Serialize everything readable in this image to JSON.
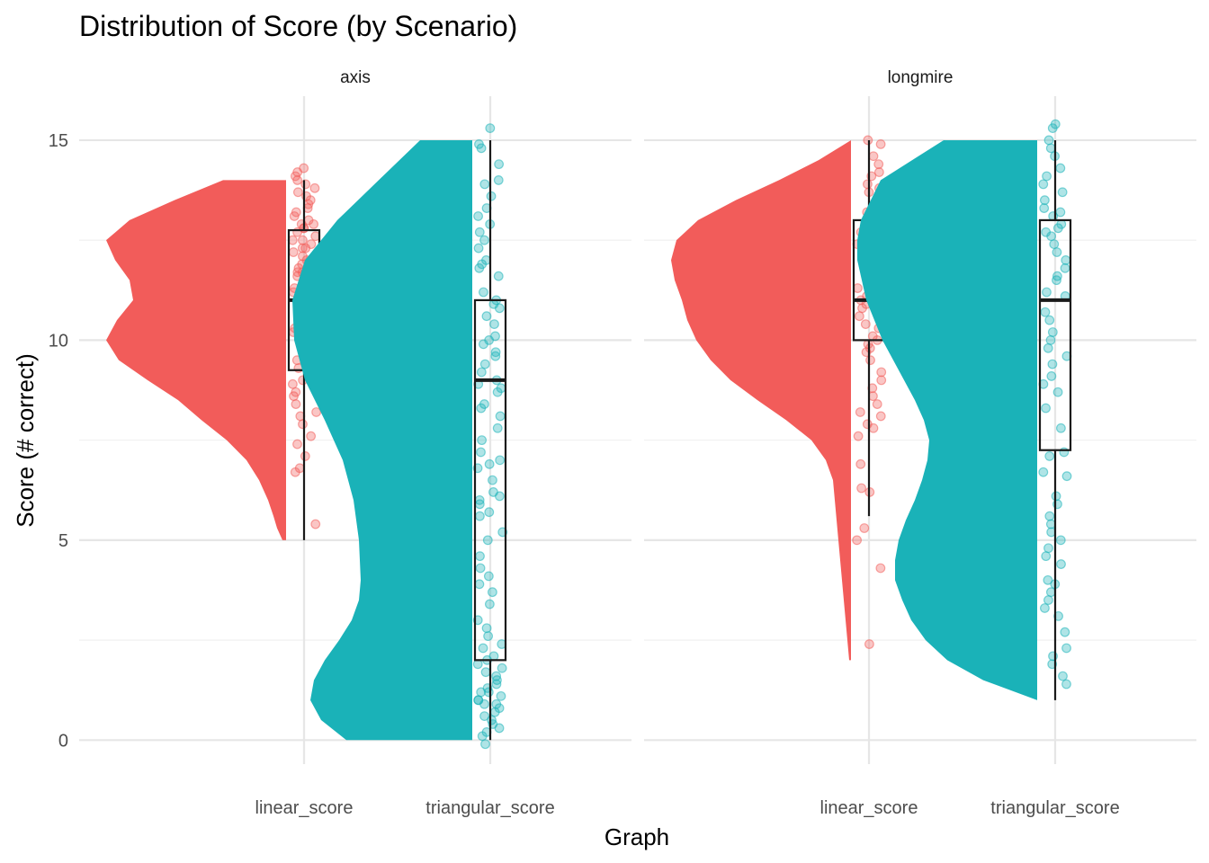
{
  "chart_data": {
    "type": "raincloud",
    "title": "Distribution of Score (by Scenario)",
    "xlabel": "Graph",
    "ylabel": "Score (# correct)",
    "ylim": [
      -0.6,
      16.1
    ],
    "y_ticks": [
      0,
      5,
      10,
      15
    ],
    "y_minor_ticks": [
      2.5,
      7.5,
      12.5
    ],
    "grid": true,
    "legend": "none",
    "categories": [
      "linear_score",
      "triangular_score"
    ],
    "colors": {
      "linear_score": "#F25C5A",
      "triangular_score": "#1AB2B8"
    },
    "facets": [
      {
        "label": "axis",
        "groups": [
          {
            "category": "linear_score",
            "box": {
              "min": 5,
              "q1": 9.25,
              "median": 11,
              "q3": 12.75,
              "max": 14
            },
            "density": [
              [
                5,
                0.02
              ],
              [
                5.3,
                0.05
              ],
              [
                5.6,
                0.07
              ],
              [
                6,
                0.1
              ],
              [
                6.5,
                0.15
              ],
              [
                7,
                0.22
              ],
              [
                7.5,
                0.33
              ],
              [
                8,
                0.47
              ],
              [
                8.5,
                0.6
              ],
              [
                9,
                0.77
              ],
              [
                9.5,
                0.93
              ],
              [
                10,
                1.0
              ],
              [
                10.5,
                0.94
              ],
              [
                11,
                0.85
              ],
              [
                11.5,
                0.87
              ],
              [
                12,
                0.95
              ],
              [
                12.5,
                1.0
              ],
              [
                13,
                0.87
              ],
              [
                13.5,
                0.62
              ],
              [
                14,
                0.35
              ]
            ],
            "points": [
              12.8,
              12.3,
              13.1,
              11.7,
              12.5,
              10.4,
              11.2,
              12.9,
              13.6,
              10.9,
              11.8,
              12.4,
              9.1,
              10.2,
              11.5,
              12.7,
              13.4,
              14.1,
              13.9,
              14.3,
              8.4,
              8.9,
              9.6,
              10.7,
              11.3,
              12.1,
              12.6,
              13.2,
              11.9,
              10.5,
              9.8,
              9.3,
              8.7,
              8.2,
              7.9,
              7.4,
              7.1,
              6.8,
              6.7,
              7.6,
              8.1,
              11.1,
              12.2,
              13.8,
              14.2,
              10.1,
              10.8,
              11.6,
              12.0,
              12.9,
              13.5,
              11.4,
              10.3,
              9.5,
              9.0,
              8.6,
              12.5,
              11.0,
              13.0,
              13.3,
              5.4,
              10.6,
              11.7,
              12.8,
              9.7,
              10.0,
              11.2,
              12.3,
              13.7,
              14.0
            ]
          },
          {
            "category": "triangular_score",
            "box": {
              "min": 0,
              "q1": 2,
              "median": 9,
              "q3": 11,
              "max": 15
            },
            "density": [
              [
                0,
                0.7
              ],
              [
                0.5,
                0.84
              ],
              [
                1,
                0.9
              ],
              [
                1.5,
                0.88
              ],
              [
                2,
                0.82
              ],
              [
                2.5,
                0.74
              ],
              [
                3,
                0.67
              ],
              [
                3.5,
                0.63
              ],
              [
                4,
                0.62
              ],
              [
                5,
                0.63
              ],
              [
                6,
                0.66
              ],
              [
                7,
                0.72
              ],
              [
                8,
                0.82
              ],
              [
                9,
                0.93
              ],
              [
                10,
                0.99
              ],
              [
                11,
                1.0
              ],
              [
                12,
                0.93
              ],
              [
                13,
                0.75
              ],
              [
                14,
                0.52
              ],
              [
                15,
                0.29
              ]
            ],
            "points": [
              0.9,
              1.2,
              0.6,
              1.5,
              0.3,
              1.8,
              1.1,
              0.8,
              1.4,
              2.1,
              0.5,
              1.0,
              1.7,
              0.2,
              2.3,
              1.3,
              0.7,
              1.6,
              0.9,
              2.4,
              3.0,
              2.8,
              3.7,
              4.1,
              4.6,
              5.2,
              5.7,
              6.1,
              6.5,
              6.9,
              7.2,
              7.8,
              8.1,
              8.4,
              8.9,
              9.2,
              9.6,
              10.1,
              10.4,
              10.8,
              11.2,
              11.6,
              11.9,
              12.3,
              12.7,
              13.1,
              13.6,
              14.0,
              14.4,
              14.8,
              15.3,
              14.9,
              13.9,
              12.9,
              11.8,
              10.6,
              9.9,
              9.4,
              8.7,
              8.3,
              7.5,
              6.8,
              6.2,
              5.6,
              5.0,
              4.3,
              3.4,
              2.6,
              1.9,
              9.0,
              10.0,
              11.0,
              12.0,
              8.8,
              9.7,
              10.9,
              12.5,
              13.3,
              6.0,
              7.0,
              5.9,
              3.9,
              0.1,
              -0.1,
              1.0,
              0.4,
              1.2,
              2.0
            ]
          }
        ]
      },
      {
        "label": "longmire",
        "groups": [
          {
            "category": "linear_score",
            "box": {
              "min": 5.6,
              "q1": 10,
              "median": 11,
              "q3": 13,
              "max": 15
            },
            "density": [
              [
                2,
                0.01
              ],
              [
                2.5,
                0.02
              ],
              [
                3,
                0.03
              ],
              [
                3.5,
                0.04
              ],
              [
                4,
                0.05
              ],
              [
                4.5,
                0.06
              ],
              [
                5,
                0.07
              ],
              [
                5.5,
                0.08
              ],
              [
                6,
                0.09
              ],
              [
                6.5,
                0.1
              ],
              [
                7,
                0.14
              ],
              [
                7.5,
                0.22
              ],
              [
                8,
                0.36
              ],
              [
                8.5,
                0.52
              ],
              [
                9,
                0.67
              ],
              [
                9.5,
                0.78
              ],
              [
                10,
                0.86
              ],
              [
                10.5,
                0.91
              ],
              [
                11,
                0.94
              ],
              [
                11.5,
                0.98
              ],
              [
                12,
                1.0
              ],
              [
                12.5,
                0.97
              ],
              [
                13,
                0.85
              ],
              [
                13.5,
                0.64
              ],
              [
                14,
                0.4
              ],
              [
                14.5,
                0.18
              ],
              [
                15,
                0.0
              ]
            ],
            "points": [
              12.1,
              11.4,
              12.8,
              13.2,
              10.6,
              11.9,
              12.5,
              13.7,
              14.2,
              14.6,
              15.0,
              14.9,
              10.3,
              11.1,
              11.7,
              12.3,
              12.9,
              13.5,
              9.8,
              9.2,
              8.8,
              8.4,
              7.9,
              7.6,
              8.1,
              9.5,
              10.1,
              10.9,
              11.6,
              12.6,
              13.0,
              13.9,
              14.4,
              12.0,
              11.3,
              10.4,
              9.9,
              9.0,
              8.6,
              8.2,
              7.8,
              6.9,
              6.3,
              6.2,
              5.3,
              5.0,
              4.3,
              2.4,
              12.4,
              11.8,
              12.7,
              13.3,
              10.8,
              11.5,
              12.2,
              13.8,
              14.1,
              9.7,
              10.0,
              11.0
            ]
          },
          {
            "category": "triangular_score",
            "box": {
              "min": 1,
              "q1": 7.25,
              "median": 11,
              "q3": 13,
              "max": 15
            },
            "density": [
              [
                1,
                0.0
              ],
              [
                1.5,
                0.3
              ],
              [
                2,
                0.5
              ],
              [
                2.5,
                0.62
              ],
              [
                3,
                0.7
              ],
              [
                3.5,
                0.75
              ],
              [
                4,
                0.79
              ],
              [
                4.5,
                0.79
              ],
              [
                5,
                0.77
              ],
              [
                5.5,
                0.73
              ],
              [
                6,
                0.68
              ],
              [
                6.5,
                0.64
              ],
              [
                7,
                0.61
              ],
              [
                7.5,
                0.6
              ],
              [
                8,
                0.63
              ],
              [
                8.5,
                0.68
              ],
              [
                9,
                0.74
              ],
              [
                9.5,
                0.8
              ],
              [
                10,
                0.86
              ],
              [
                11,
                0.95
              ],
              [
                12,
                1.0
              ],
              [
                12.5,
                1.0
              ],
              [
                13,
                0.98
              ],
              [
                14,
                0.87
              ],
              [
                15,
                0.52
              ]
            ],
            "points": [
              12.6,
              13.1,
              11.8,
              12.2,
              13.5,
              14.1,
              14.6,
              15.0,
              15.3,
              15.4,
              14.8,
              13.9,
              13.3,
              12.9,
              12.4,
              11.5,
              11.1,
              10.7,
              10.2,
              9.8,
              9.4,
              8.9,
              8.3,
              7.8,
              7.2,
              6.7,
              6.1,
              5.6,
              5.2,
              4.8,
              4.4,
              3.9,
              3.5,
              3.1,
              2.7,
              2.3,
              1.9,
              1.4,
              1.6,
              2.1,
              3.3,
              4.0,
              4.6,
              5.0,
              5.9,
              6.6,
              7.1,
              9.1,
              10.0,
              11.2,
              12.0,
              12.8,
              13.7,
              14.3,
              10.5,
              11.6,
              12.7,
              13.2,
              9.6,
              8.7,
              5.4,
              3.7
            ]
          }
        ]
      }
    ]
  }
}
